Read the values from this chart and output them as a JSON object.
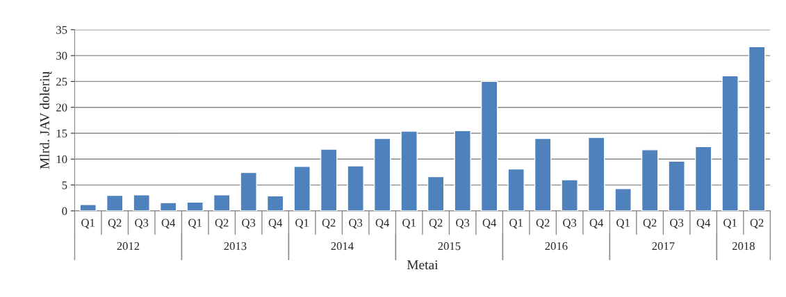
{
  "chart_data": {
    "type": "bar",
    "ylabel": "Mlrd. JAV dolerių",
    "xlabel": "Metai",
    "categories": [
      "Q1",
      "Q2",
      "Q3",
      "Q4",
      "Q1",
      "Q2",
      "Q3",
      "Q4",
      "Q1",
      "Q2",
      "Q3",
      "Q4",
      "Q1",
      "Q2",
      "Q3",
      "Q4",
      "Q1",
      "Q2",
      "Q3",
      "Q4",
      "Q1",
      "Q2",
      "Q3",
      "Q4",
      "Q1",
      "Q2"
    ],
    "values": [
      1.2,
      3.0,
      3.1,
      1.6,
      1.7,
      3.1,
      7.4,
      2.9,
      8.6,
      11.9,
      8.7,
      14.0,
      15.4,
      6.6,
      15.5,
      25.0,
      8.1,
      14.0,
      6.0,
      14.2,
      4.3,
      11.8,
      9.6,
      12.4,
      26.1,
      31.7
    ],
    "color": "#4f81bd",
    "annotations": [
      "2012",
      "2013",
      "2014",
      "2015",
      "2016",
      "2017",
      "2018"
    ],
    "ylim": [
      0,
      35
    ],
    "yticks": [
      0,
      5,
      10,
      15,
      20,
      25,
      30,
      35
    ],
    "grid": "y"
  }
}
